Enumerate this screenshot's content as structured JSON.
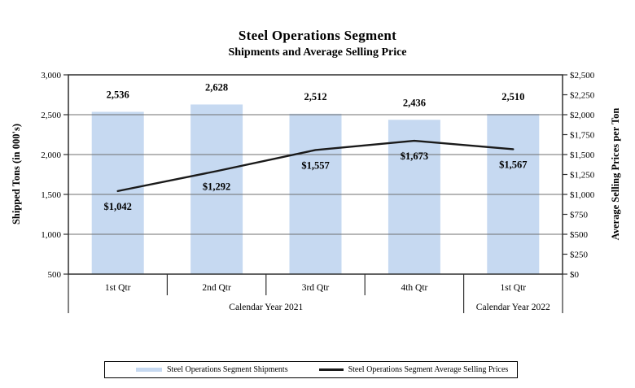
{
  "title": "Steel Operations Segment",
  "subtitle": "Shipments and Average Selling Price",
  "left_axis": {
    "title": "Shipped Tons (in 000's)",
    "range": [
      500,
      3000
    ],
    "ticks": [
      {
        "value": 3000,
        "label": "3,000"
      },
      {
        "value": 2500,
        "label": "2,500"
      },
      {
        "value": 2000,
        "label": "2,000"
      },
      {
        "value": 1500,
        "label": "1,500"
      },
      {
        "value": 1000,
        "label": "1,000"
      },
      {
        "value": 500,
        "label": "500"
      }
    ]
  },
  "right_axis": {
    "title": "Average Selling Prices per Ton",
    "range": [
      0,
      2500
    ],
    "ticks": [
      {
        "value": 2500,
        "label": "$2,500"
      },
      {
        "value": 2250,
        "label": "$2,250"
      },
      {
        "value": 2000,
        "label": "$2,000"
      },
      {
        "value": 1750,
        "label": "$1,750"
      },
      {
        "value": 1500,
        "label": "$1,500"
      },
      {
        "value": 1250,
        "label": "$1,250"
      },
      {
        "value": 1000,
        "label": "$1,000"
      },
      {
        "value": 750,
        "label": "$750"
      },
      {
        "value": 500,
        "label": "$500"
      },
      {
        "value": 250,
        "label": "$250"
      },
      {
        "value": 0,
        "label": "$0"
      }
    ]
  },
  "x_axis": {
    "categories": [
      "1st Qtr",
      "2nd Qtr",
      "3rd Qtr",
      "4th Qtr",
      "1st Qtr"
    ],
    "year_groups": [
      {
        "label": "Calendar Year 2021",
        "span": 4
      },
      {
        "label": "Calendar Year 2022",
        "span": 1
      }
    ]
  },
  "legend": {
    "shipments_label": "Steel Operations Segment Shipments",
    "prices_label": "Steel Operations Segment Average Selling Prices"
  },
  "colors": {
    "bar": "#c6d9f1",
    "line": "#1a1a1a",
    "grid": "#6f6f6f",
    "axis": "#2f2f2f"
  },
  "chart_data": {
    "type": "combo-bar-line",
    "title": "Steel Operations Segment",
    "subtitle": "Shipments and Average Selling Price",
    "categories": [
      "1st Qtr",
      "2nd Qtr",
      "3rd Qtr",
      "4th Qtr",
      "1st Qtr"
    ],
    "category_groups": [
      "Calendar Year 2021",
      "Calendar Year 2021",
      "Calendar Year 2021",
      "Calendar Year 2021",
      "Calendar Year 2022"
    ],
    "series": [
      {
        "name": "Steel Operations Segment Shipments",
        "type": "bar",
        "axis": "left",
        "values": [
          2536,
          2628,
          2512,
          2436,
          2510
        ],
        "labels": [
          "2,536",
          "2,628",
          "2,512",
          "2,436",
          "2,510"
        ]
      },
      {
        "name": "Steel Operations Segment Average Selling Prices",
        "type": "line",
        "axis": "right",
        "values": [
          1042,
          1292,
          1557,
          1673,
          1567
        ],
        "labels": [
          "$1,042",
          "$1,292",
          "$1,557",
          "$1,673",
          "$1,567"
        ]
      }
    ],
    "left_ylabel": "Shipped Tons (in 000's)",
    "right_ylabel": "Average Selling Prices per Ton",
    "left_ylim": [
      500,
      3000
    ],
    "right_ylim": [
      0,
      2500
    ],
    "grid": true,
    "legend_position": "bottom"
  }
}
